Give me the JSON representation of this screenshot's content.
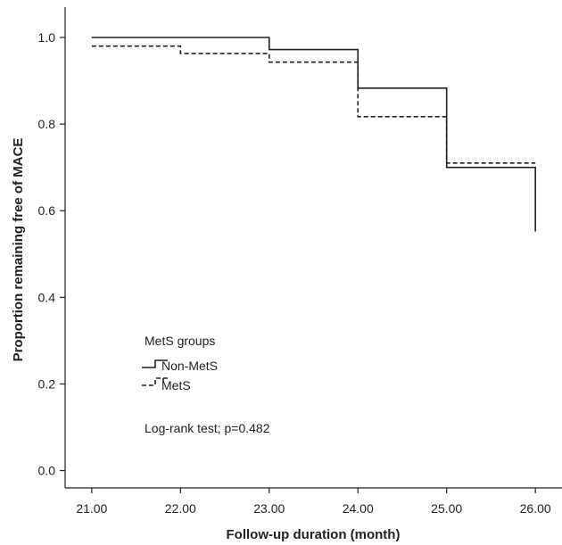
{
  "chart_data": {
    "type": "line",
    "title": "",
    "xlabel": "Follow-up duration (month)",
    "ylabel": "Proportion remaining free of MACE",
    "xlim": [
      20.7,
      26.3
    ],
    "ylim": [
      -0.04,
      1.07
    ],
    "x_ticks": [
      21,
      22,
      23,
      24,
      25,
      26
    ],
    "x_tick_labels": [
      "21.00",
      "22.00",
      "23.00",
      "24.00",
      "25.00",
      "26.00"
    ],
    "y_ticks": [
      0,
      0.2,
      0.4,
      0.6,
      0.8,
      1.0
    ],
    "y_tick_labels": [
      "0.0",
      "0.2",
      "0.4",
      "0.6",
      "0.8",
      "1.0"
    ],
    "step": true,
    "grid": false,
    "legend_position": "lower-left",
    "legend_title": "MetS groups",
    "annotation": "Log-rank test; p=0.482",
    "series": [
      {
        "name": "Non-MetS",
        "style": "solid",
        "color": "#231f20",
        "x": [
          21,
          23,
          24,
          25,
          26
        ],
        "y": [
          1.0,
          0.972,
          0.883,
          0.7,
          0.552
        ]
      },
      {
        "name": "MetS",
        "style": "dashed",
        "color": "#231f20",
        "x": [
          21,
          22,
          23,
          24,
          25,
          26
        ],
        "y": [
          0.98,
          0.963,
          0.943,
          0.817,
          0.71,
          0.71
        ]
      }
    ]
  }
}
